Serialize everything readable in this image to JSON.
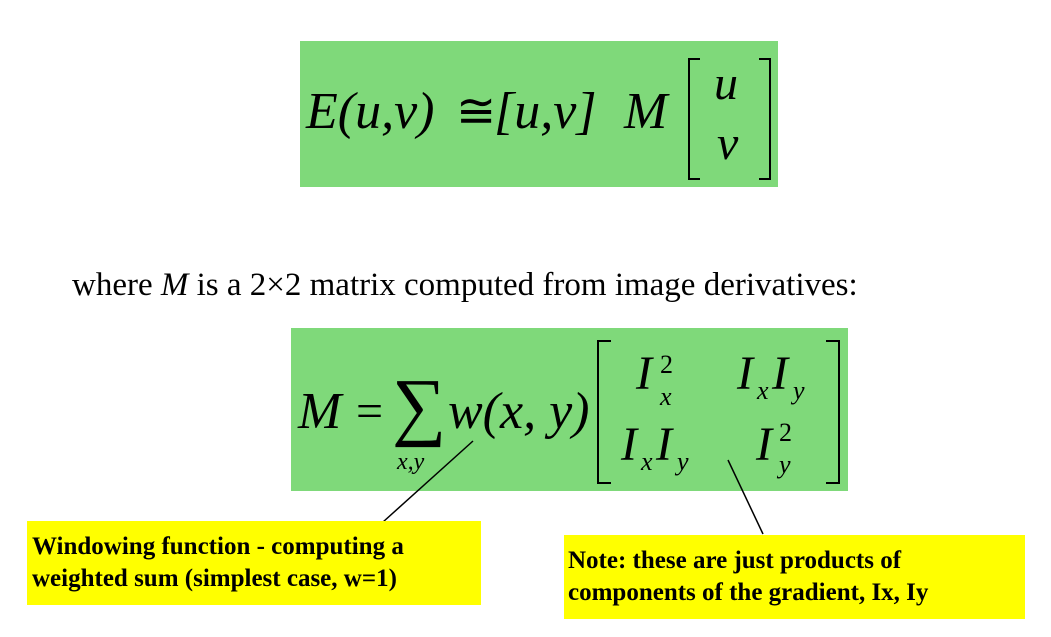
{
  "equation1": {
    "lhs": "E(u,v)",
    "approx": "≅",
    "row_vector": "[u,v]",
    "matrix_symbol": "M",
    "col_top": "u",
    "col_bottom": "v"
  },
  "where_text": {
    "pre": "where ",
    "symbol": "M",
    "post": " is a 2×2 matrix computed from image derivatives:"
  },
  "equation2": {
    "lhs": "M",
    "equals": "=",
    "sum": "∑",
    "sum_sub": "x,y",
    "weight": "w(x, y)",
    "m11_base": "I",
    "m11_sub": "x",
    "m11_sup": "2",
    "m12_a": "I",
    "m12_a_sub": "x",
    "m12_b": "I",
    "m12_b_sub": "y",
    "m21_a": "I",
    "m21_a_sub": "x",
    "m21_b": "I",
    "m21_b_sub": "y",
    "m22_base": "I",
    "m22_sub": "y",
    "m22_sup": "2"
  },
  "callouts": {
    "window_line1": "Windowing function - computing a",
    "window_line2": "weighted sum (simplest case, w=1)",
    "note_line1": "Note: these are just products of",
    "note_line2": "components of the gradient, Ix, Iy"
  },
  "colors": {
    "equation_bg": "#7fd97a",
    "callout_bg": "#ffff00"
  }
}
